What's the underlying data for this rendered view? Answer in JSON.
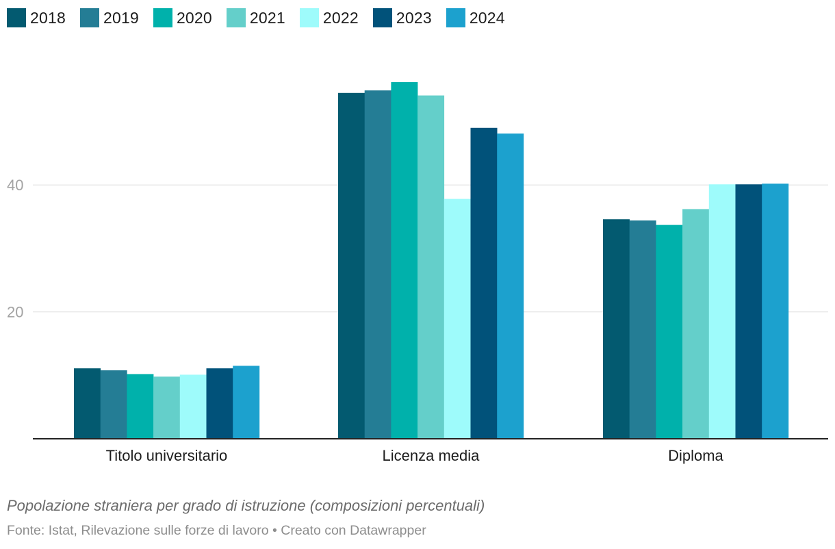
{
  "chart_data": {
    "type": "bar",
    "categories": [
      "Titolo universitario",
      "Licenza media",
      "Diploma"
    ],
    "series": [
      {
        "name": "2018",
        "color": "#035a70",
        "values": [
          11.1,
          54.5,
          34.6
        ]
      },
      {
        "name": "2019",
        "color": "#247d95",
        "values": [
          10.8,
          54.9,
          34.4
        ]
      },
      {
        "name": "2020",
        "color": "#00b1ab",
        "values": [
          10.2,
          56.2,
          33.7
        ]
      },
      {
        "name": "2021",
        "color": "#64cfca",
        "values": [
          9.8,
          54.1,
          36.2
        ]
      },
      {
        "name": "2022",
        "color": "#9efbfb",
        "values": [
          10.1,
          37.8,
          40.1
        ]
      },
      {
        "name": "2023",
        "color": "#01527a",
        "values": [
          11.1,
          49.0,
          40.1
        ]
      },
      {
        "name": "2024",
        "color": "#1ca1ce",
        "values": [
          11.5,
          48.1,
          40.2
        ]
      }
    ],
    "yticks": [
      20,
      40
    ],
    "ylim": [
      0,
      63
    ],
    "grid": true,
    "legend": "top-left",
    "title": "Popolazione straniera per grado di istruzione (composizioni percentuali)",
    "source": "Fonte: Istat, Rilevazione sulle forze di lavoro • Creato con Datawrapper"
  }
}
